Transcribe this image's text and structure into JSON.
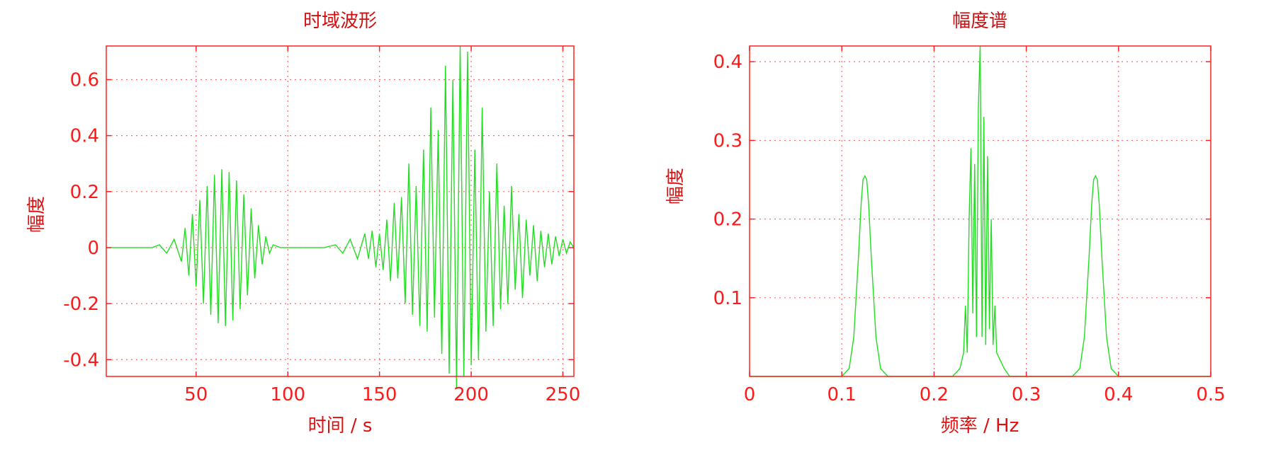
{
  "colors": {
    "axis": "#ff2020",
    "text": "#ff1a1a",
    "trace": "#22dd22",
    "background": "#ffffff"
  },
  "chart_data": [
    {
      "type": "line",
      "title": "时域波形",
      "xlabel": "时间 / s",
      "ylabel": "幅度",
      "xlim": [
        1,
        256
      ],
      "ylim": [
        -0.46,
        0.72
      ],
      "xticks": [
        50,
        100,
        150,
        200,
        250
      ],
      "yticks": [
        -0.4,
        -0.2,
        0,
        0.2,
        0.4,
        0.6
      ],
      "xtick_labels": [
        "50",
        "100",
        "150",
        "200",
        "250"
      ],
      "ytick_labels": [
        "-0.4",
        "-0.2",
        "0",
        "0.2",
        "0.4",
        "0.6"
      ],
      "grid": true,
      "series": [
        {
          "color": "#22dd22",
          "x": [
            1,
            26,
            30,
            34,
            38,
            42,
            44,
            46,
            48,
            50,
            52,
            54,
            56,
            58,
            60,
            62,
            64,
            66,
            68,
            70,
            72,
            74,
            76,
            78,
            80,
            82,
            84,
            86,
            88,
            90,
            92,
            96,
            100,
            110,
            120,
            126,
            130,
            134,
            138,
            142,
            144,
            146,
            148,
            150,
            152,
            154,
            156,
            158,
            160,
            162,
            164,
            166,
            168,
            170,
            172,
            174,
            176,
            178,
            180,
            182,
            184,
            186,
            188,
            190,
            192,
            194,
            196,
            198,
            200,
            202,
            204,
            206,
            208,
            210,
            212,
            214,
            216,
            218,
            220,
            222,
            224,
            226,
            228,
            230,
            232,
            234,
            236,
            238,
            240,
            242,
            244,
            246,
            248,
            250,
            252,
            254,
            256
          ],
          "y": [
            0,
            0,
            0.01,
            -0.02,
            0.03,
            -0.05,
            0.07,
            -0.1,
            0.12,
            -0.14,
            0.17,
            -0.2,
            0.22,
            -0.24,
            0.26,
            -0.27,
            0.28,
            -0.28,
            0.27,
            -0.26,
            0.24,
            -0.22,
            0.19,
            -0.17,
            0.14,
            -0.11,
            0.08,
            -0.06,
            0.04,
            -0.02,
            0.01,
            0,
            0,
            0,
            0,
            0.01,
            -0.02,
            0.03,
            -0.04,
            0.05,
            -0.04,
            0.06,
            -0.07,
            0.05,
            -0.08,
            0.1,
            -0.12,
            0.16,
            -0.11,
            0.18,
            -0.2,
            0.3,
            -0.24,
            0.22,
            -0.28,
            0.35,
            -0.3,
            0.5,
            -0.25,
            0.42,
            -0.38,
            0.65,
            -0.45,
            0.6,
            -0.5,
            0.72,
            -0.46,
            0.7,
            -0.42,
            0.35,
            -0.4,
            0.5,
            -0.3,
            0.2,
            -0.28,
            0.3,
            -0.22,
            0.15,
            -0.2,
            0.22,
            -0.15,
            0.12,
            -0.18,
            0.1,
            -0.1,
            0.08,
            -0.12,
            0.06,
            -0.07,
            0.05,
            -0.06,
            0.04,
            -0.03,
            0.03,
            -0.02,
            0.02,
            0
          ]
        }
      ]
    },
    {
      "type": "line",
      "title": "幅度谱",
      "xlabel": "频率 / Hz",
      "ylabel": "幅度",
      "xlim": [
        0,
        0.5
      ],
      "ylim": [
        0,
        0.42
      ],
      "xticks": [
        0,
        0.1,
        0.2,
        0.3,
        0.4,
        0.5
      ],
      "yticks": [
        0.1,
        0.2,
        0.3,
        0.4
      ],
      "xtick_labels": [
        "0",
        "0.1",
        "0.2",
        "0.3",
        "0.4",
        "0.5"
      ],
      "ytick_labels": [
        "0.1",
        "0.2",
        "0.3",
        "0.4"
      ],
      "grid": true,
      "series": [
        {
          "color": "#22dd22",
          "x": [
            0,
            0.1,
            0.108,
            0.113,
            0.118,
            0.121,
            0.123,
            0.125,
            0.127,
            0.129,
            0.132,
            0.137,
            0.142,
            0.15,
            0.22,
            0.228,
            0.232,
            0.234,
            0.236,
            0.238,
            0.24,
            0.242,
            0.244,
            0.246,
            0.248,
            0.25,
            0.252,
            0.254,
            0.256,
            0.258,
            0.26,
            0.262,
            0.264,
            0.266,
            0.268,
            0.272,
            0.276,
            0.282,
            0.35,
            0.358,
            0.363,
            0.368,
            0.371,
            0.373,
            0.375,
            0.377,
            0.379,
            0.382,
            0.387,
            0.392,
            0.4,
            0.5
          ],
          "y": [
            0,
            0,
            0.01,
            0.05,
            0.15,
            0.22,
            0.25,
            0.255,
            0.25,
            0.22,
            0.15,
            0.05,
            0.01,
            0,
            0,
            0.01,
            0.03,
            0.09,
            0.03,
            0.2,
            0.29,
            0.08,
            0.27,
            0.05,
            0.34,
            0.42,
            0.05,
            0.33,
            0.04,
            0.28,
            0.06,
            0.2,
            0.04,
            0.09,
            0.03,
            0.02,
            0.01,
            0,
            0,
            0.01,
            0.05,
            0.15,
            0.22,
            0.25,
            0.255,
            0.25,
            0.22,
            0.15,
            0.05,
            0.01,
            0,
            0
          ]
        }
      ]
    }
  ]
}
